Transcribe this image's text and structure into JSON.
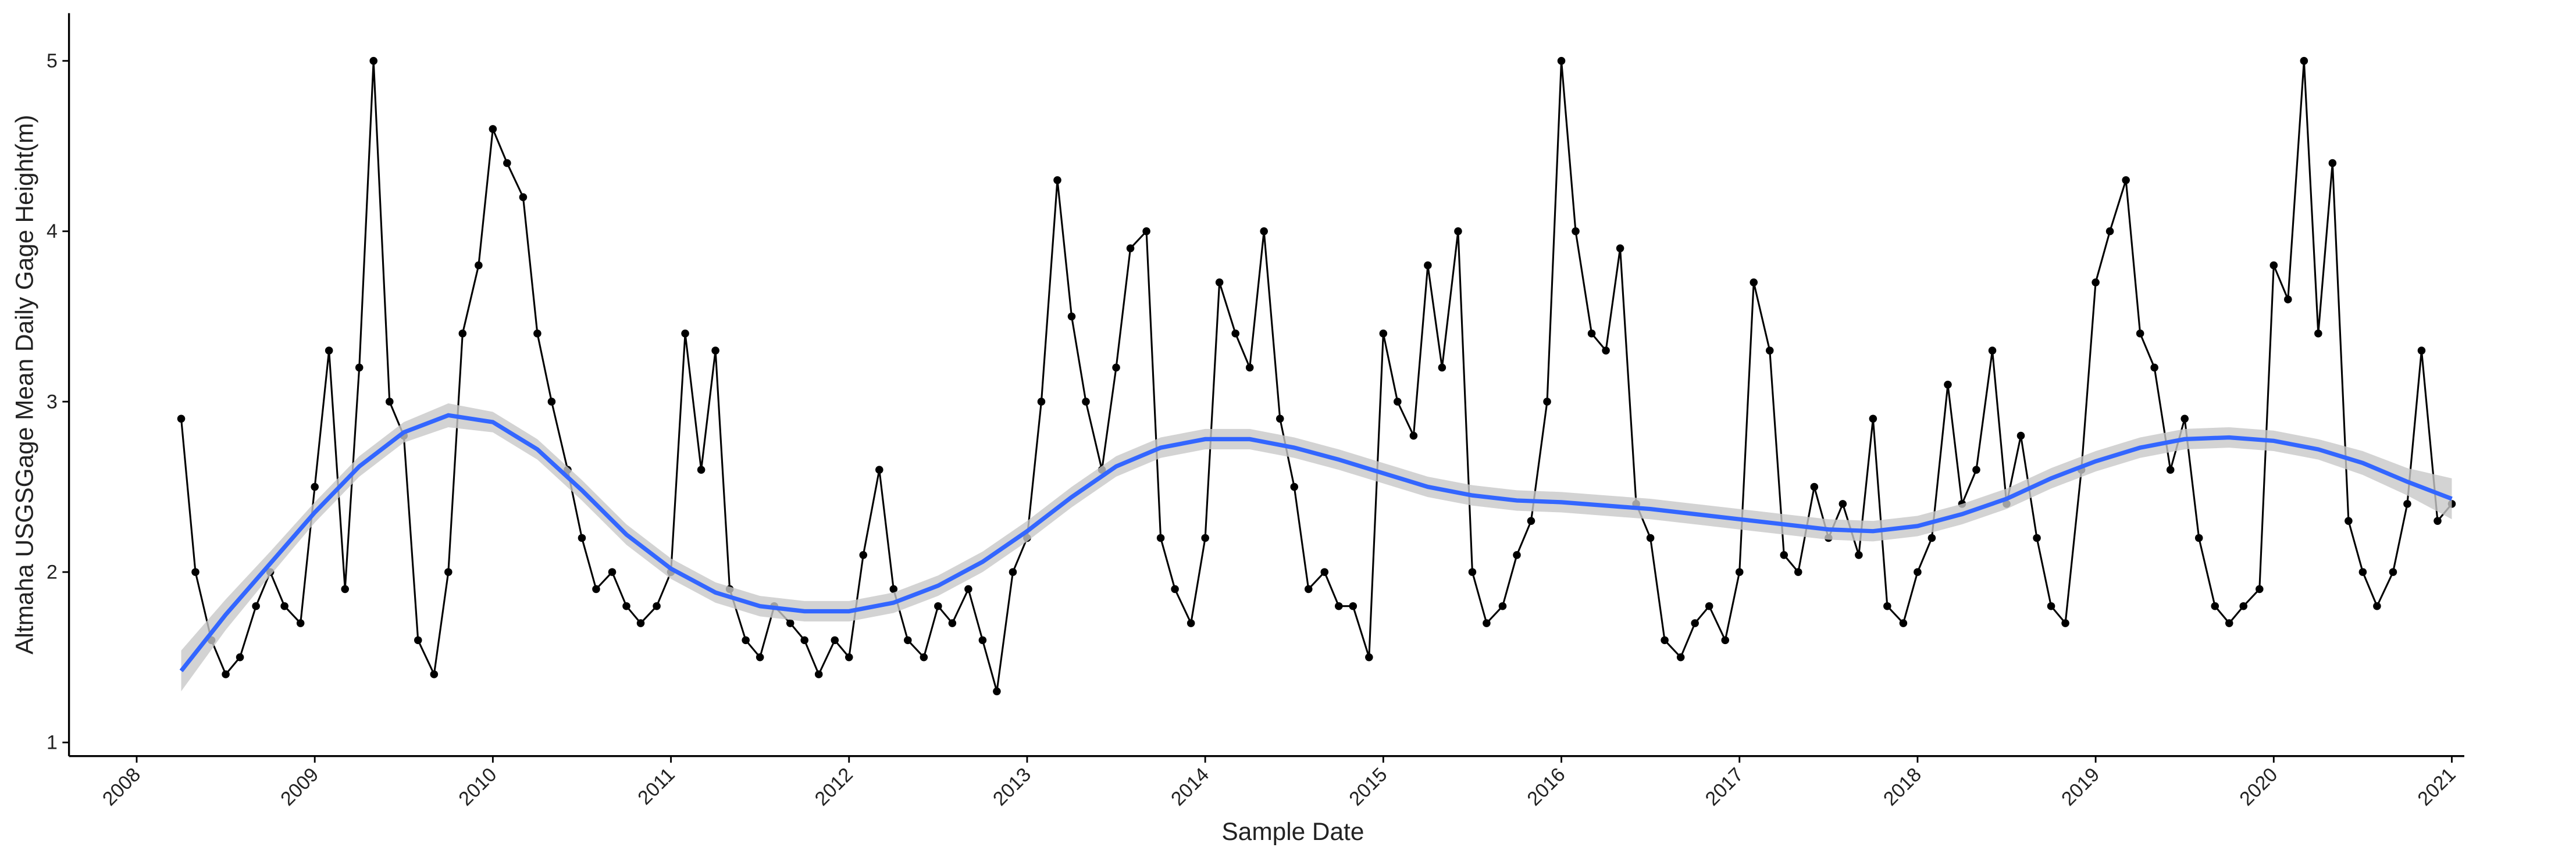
{
  "chart_data": {
    "type": "line",
    "xlabel": "Sample Date",
    "ylabel": "Altmaha USGSGage Mean Daily Gage Height(m)",
    "xlim": [
      2007.62,
      2021.07
    ],
    "ylim": [
      0.92,
      5.28
    ],
    "xticks": [
      2008,
      2009,
      2010,
      2011,
      2012,
      2013,
      2014,
      2015,
      2016,
      2017,
      2018,
      2019,
      2020,
      2021
    ],
    "yticks": [
      1,
      2,
      3,
      4,
      5
    ],
    "grid": false,
    "series": [
      {
        "color": "#000000",
        "markers": true,
        "x": [
          2008.25,
          2008.33,
          2008.42,
          2008.5,
          2008.58,
          2008.67,
          2008.75,
          2008.83,
          2008.92,
          2009,
          2009.08,
          2009.17,
          2009.25,
          2009.33,
          2009.42,
          2009.5,
          2009.58,
          2009.67,
          2009.75,
          2009.83,
          2009.92,
          2010,
          2010.08,
          2010.17,
          2010.25,
          2010.33,
          2010.42,
          2010.5,
          2010.58,
          2010.67,
          2010.75,
          2010.83,
          2010.92,
          2011,
          2011.08,
          2011.17,
          2011.25,
          2011.33,
          2011.42,
          2011.5,
          2011.58,
          2011.67,
          2011.75,
          2011.83,
          2011.92,
          2012,
          2012.08,
          2012.17,
          2012.25,
          2012.33,
          2012.42,
          2012.5,
          2012.58,
          2012.67,
          2012.75,
          2012.83,
          2012.92,
          2013,
          2013.08,
          2013.17,
          2013.25,
          2013.33,
          2013.42,
          2013.5,
          2013.58,
          2013.67,
          2013.75,
          2013.83,
          2013.92,
          2014,
          2014.08,
          2014.17,
          2014.25,
          2014.33,
          2014.42,
          2014.5,
          2014.58,
          2014.67,
          2014.75,
          2014.83,
          2014.92,
          2015,
          2015.08,
          2015.17,
          2015.25,
          2015.33,
          2015.42,
          2015.5,
          2015.58,
          2015.67,
          2015.75,
          2015.83,
          2015.92,
          2016,
          2016.08,
          2016.17,
          2016.25,
          2016.33,
          2016.42,
          2016.5,
          2016.58,
          2016.67,
          2016.75,
          2016.83,
          2016.92,
          2017,
          2017.08,
          2017.17,
          2017.25,
          2017.33,
          2017.42,
          2017.5,
          2017.58,
          2017.67,
          2017.75,
          2017.83,
          2017.92,
          2018,
          2018.08,
          2018.17,
          2018.25,
          2018.33,
          2018.42,
          2018.5,
          2018.58,
          2018.67,
          2018.75,
          2018.83,
          2018.92,
          2019,
          2019.08,
          2019.17,
          2019.25,
          2019.33,
          2019.42,
          2019.5,
          2019.58,
          2019.67,
          2019.75,
          2019.83,
          2019.92,
          2020,
          2020.08,
          2020.17,
          2020.25,
          2020.33,
          2020.42,
          2020.5,
          2020.58,
          2020.67,
          2020.75,
          2020.83,
          2020.92,
          2021
        ],
        "values": [
          2.9,
          2.0,
          1.6,
          1.4,
          1.5,
          1.8,
          2.0,
          1.8,
          1.7,
          2.5,
          3.3,
          1.9,
          3.2,
          5.0,
          3.0,
          2.8,
          1.6,
          1.4,
          2.0,
          3.4,
          3.8,
          4.6,
          4.4,
          4.2,
          3.4,
          3.0,
          2.6,
          2.2,
          1.9,
          2.0,
          1.8,
          1.7,
          1.8,
          2.0,
          3.4,
          2.6,
          3.3,
          1.9,
          1.6,
          1.5,
          1.8,
          1.7,
          1.6,
          1.4,
          1.6,
          1.5,
          2.1,
          2.6,
          1.9,
          1.6,
          1.5,
          1.8,
          1.7,
          1.9,
          1.6,
          1.3,
          2.0,
          2.2,
          3.0,
          4.3,
          3.5,
          3.0,
          2.6,
          3.2,
          3.9,
          4.0,
          2.2,
          1.9,
          1.7,
          2.2,
          3.7,
          3.4,
          3.2,
          4.0,
          2.9,
          2.5,
          1.9,
          2.0,
          1.8,
          1.8,
          1.5,
          3.4,
          3.0,
          2.8,
          3.8,
          3.2,
          4.0,
          2.0,
          1.7,
          1.8,
          2.1,
          2.3,
          3.0,
          5.0,
          4.0,
          3.4,
          3.3,
          3.9,
          2.4,
          2.2,
          1.6,
          1.5,
          1.7,
          1.8,
          1.6,
          2.0,
          3.7,
          3.3,
          2.1,
          2.0,
          2.5,
          2.2,
          2.4,
          2.1,
          2.9,
          1.8,
          1.7,
          2.0,
          2.2,
          3.1,
          2.4,
          2.6,
          3.3,
          2.4,
          2.8,
          2.2,
          1.8,
          1.7,
          2.6,
          3.7,
          4.0,
          4.3,
          3.4,
          3.2,
          2.6,
          2.9,
          2.2,
          1.8,
          1.7,
          1.8,
          1.9,
          3.8,
          3.6,
          5.0,
          3.4,
          4.4,
          2.3,
          2.0,
          1.8,
          2.0,
          2.4,
          3.3,
          2.3,
          2.4
        ]
      },
      {
        "color": "#3366ff",
        "markers": false,
        "band_color": "#c8c8c8",
        "x": [
          2008.25,
          2008.5,
          2008.75,
          2009,
          2009.25,
          2009.5,
          2009.75,
          2010,
          2010.25,
          2010.5,
          2010.75,
          2011,
          2011.25,
          2011.5,
          2011.75,
          2012,
          2012.25,
          2012.5,
          2012.75,
          2013,
          2013.25,
          2013.5,
          2013.75,
          2014,
          2014.25,
          2014.5,
          2014.75,
          2015,
          2015.25,
          2015.5,
          2015.75,
          2016,
          2016.25,
          2016.5,
          2016.75,
          2017,
          2017.25,
          2017.5,
          2017.75,
          2018,
          2018.25,
          2018.5,
          2018.75,
          2019,
          2019.25,
          2019.5,
          2019.75,
          2020,
          2020.25,
          2020.5,
          2020.75,
          2021
        ],
        "values": [
          1.42,
          1.75,
          2.05,
          2.35,
          2.62,
          2.82,
          2.92,
          2.88,
          2.72,
          2.48,
          2.22,
          2.02,
          1.88,
          1.8,
          1.77,
          1.77,
          1.82,
          1.92,
          2.06,
          2.24,
          2.44,
          2.62,
          2.73,
          2.78,
          2.78,
          2.73,
          2.66,
          2.58,
          2.5,
          2.45,
          2.42,
          2.41,
          2.39,
          2.37,
          2.34,
          2.31,
          2.28,
          2.25,
          2.24,
          2.27,
          2.34,
          2.43,
          2.55,
          2.65,
          2.73,
          2.78,
          2.79,
          2.77,
          2.72,
          2.64,
          2.53,
          2.43
        ],
        "error": [
          0.12,
          0.09,
          0.07,
          0.06,
          0.06,
          0.06,
          0.07,
          0.06,
          0.06,
          0.06,
          0.06,
          0.06,
          0.06,
          0.06,
          0.06,
          0.06,
          0.06,
          0.06,
          0.06,
          0.06,
          0.06,
          0.06,
          0.06,
          0.06,
          0.06,
          0.06,
          0.06,
          0.06,
          0.06,
          0.06,
          0.06,
          0.06,
          0.06,
          0.06,
          0.06,
          0.06,
          0.06,
          0.06,
          0.06,
          0.06,
          0.06,
          0.06,
          0.06,
          0.06,
          0.06,
          0.06,
          0.06,
          0.06,
          0.06,
          0.07,
          0.08,
          0.12
        ]
      }
    ]
  }
}
